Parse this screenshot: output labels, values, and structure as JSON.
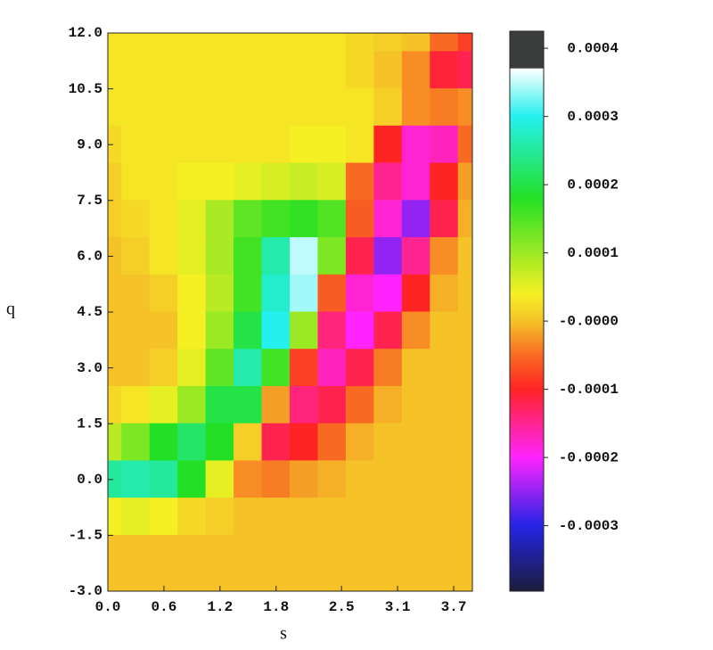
{
  "chart_data": {
    "type": "heatmap",
    "x_label": "s",
    "y_label": "q",
    "xlim": [
      0,
      3.9
    ],
    "ylim": [
      -3,
      12
    ],
    "xticks": [
      {
        "value": 0,
        "label": "0.0"
      },
      0.6,
      1.2,
      1.8,
      2.5,
      3.1,
      3.7
    ],
    "yticks": [
      {
        "value": -3,
        "label": "-3.0"
      },
      -1.5,
      {
        "value": 0,
        "label": "0.0"
      },
      1.5,
      {
        "value": 3,
        "label": "3.0"
      },
      4.5,
      {
        "value": 6,
        "label": "6.0"
      },
      7.5,
      {
        "value": 9,
        "label": "9.0"
      },
      10.5,
      {
        "value": 12,
        "label": "12.0"
      }
    ],
    "x": [
      0,
      0.3,
      0.6,
      0.9,
      1.2,
      1.5,
      1.8,
      2.1,
      2.4,
      2.7,
      3.0,
      3.3,
      3.6,
      3.9
    ],
    "y": [
      12,
      11,
      10,
      9,
      8,
      7,
      6,
      5,
      4,
      3,
      2,
      1,
      0,
      -1,
      -2,
      -3
    ],
    "z": [
      [
        3e-05,
        3e-05,
        3e-05,
        3e-05,
        3e-05,
        3e-05,
        3e-05,
        3e-05,
        3e-05,
        2e-05,
        1e-05,
        0,
        -5e-05,
        -8e-05
      ],
      [
        3e-05,
        3e-05,
        3e-05,
        3e-05,
        3e-05,
        3e-05,
        3e-05,
        3e-05,
        3e-05,
        2e-05,
        0,
        -3e-05,
        -0.00011,
        -0.00012
      ],
      [
        3e-05,
        3e-05,
        3e-05,
        3e-05,
        3e-05,
        3e-05,
        3e-05,
        3e-05,
        3e-05,
        3e-05,
        1e-05,
        -3e-05,
        -4e-05,
        -3e-05
      ],
      [
        2e-05,
        3e-05,
        3e-05,
        3e-05,
        3e-05,
        3e-05,
        3e-05,
        4e-05,
        4e-05,
        3e-05,
        -0.0001,
        -0.00018,
        -0.00017,
        -5e-05
      ],
      [
        1e-05,
        3e-05,
        3e-05,
        4e-05,
        4e-05,
        5e-05,
        6e-05,
        7e-05,
        6e-05,
        -5e-05,
        -0.00015,
        -0.00018,
        -0.0001,
        -2e-05
      ],
      [
        1e-05,
        2e-05,
        3e-05,
        5e-05,
        9e-05,
        0.00014,
        0.00016,
        0.00017,
        0.00015,
        -6e-05,
        -0.00018,
        -0.00025,
        -0.00012,
        -1e-05
      ],
      [
        0,
        1e-05,
        3e-05,
        5e-05,
        9e-05,
        0.00016,
        0.00026,
        0.00035,
        0.00012,
        -0.00012,
        -0.00025,
        -0.00015,
        -3e-05,
        0
      ],
      [
        0,
        0,
        1e-05,
        4e-05,
        8e-05,
        0.00016,
        0.00028,
        0.00034,
        -6e-05,
        -0.00018,
        -0.0002,
        -0.0001,
        -1e-05,
        0
      ],
      [
        0,
        0,
        0,
        4e-05,
        0.0001,
        0.0002,
        0.0003,
        0.0001,
        -0.00014,
        -0.0002,
        -0.00012,
        -3e-05,
        0,
        0
      ],
      [
        0,
        0,
        1e-05,
        5e-05,
        0.00014,
        0.00026,
        0.00016,
        -8e-05,
        -0.00017,
        -0.00012,
        -4e-05,
        0,
        0,
        0
      ],
      [
        2e-05,
        3e-05,
        5e-05,
        0.0001,
        0.0002,
        0.0002,
        -2e-05,
        -0.00014,
        -0.00012,
        -5e-05,
        -1e-05,
        0,
        0,
        0
      ],
      [
        8e-05,
        0.00012,
        0.00018,
        0.00022,
        0.00018,
        1e-05,
        -0.00012,
        -0.0001,
        -5e-05,
        -1e-05,
        0,
        0,
        0,
        0
      ],
      [
        0.00025,
        0.00026,
        0.00025,
        0.00018,
        5e-05,
        -3e-05,
        -4e-05,
        -2e-05,
        -1e-05,
        0,
        0,
        0,
        0,
        0
      ],
      [
        4e-05,
        5e-05,
        4e-05,
        2e-05,
        1e-05,
        0,
        0,
        0,
        0,
        0,
        0,
        0,
        0,
        0
      ],
      [
        0,
        0,
        0,
        0,
        0,
        0,
        0,
        0,
        0,
        0,
        0,
        0,
        0,
        0
      ],
      [
        0,
        0,
        0,
        0,
        0,
        0,
        0,
        0,
        0,
        0,
        0,
        0,
        0,
        0
      ]
    ],
    "zlim": [
      -0.000396,
      0.000425
    ],
    "zticks": [
      {
        "value": 0.0004,
        "label": "0.0004"
      },
      {
        "value": 0.0003,
        "label": "0.0003"
      },
      {
        "value": 0.0002,
        "label": "0.0002"
      },
      {
        "value": 0.0001,
        "label": "0.0001"
      },
      {
        "value": 0,
        "label": "-0.0000"
      },
      {
        "value": -0.0001,
        "label": "-0.0001"
      },
      {
        "value": -0.0002,
        "label": "-0.0002"
      },
      {
        "value": -0.0003,
        "label": "-0.0003"
      }
    ],
    "colormap": [
      {
        "value": -0.000396,
        "color": "#1c1c3c"
      },
      {
        "value": -0.0003,
        "color": "#2424e6"
      },
      {
        "value": -0.0002,
        "color": "#ff24ff"
      },
      {
        "value": -0.0001,
        "color": "#ff2424"
      },
      {
        "value": -5e-05,
        "color": "#f86a22"
      },
      {
        "value": 0,
        "color": "#f5c228"
      },
      {
        "value": 4e-05,
        "color": "#f5f024"
      },
      {
        "value": 0.00018,
        "color": "#24e024"
      },
      {
        "value": 0.0003,
        "color": "#24f0f0"
      },
      {
        "value": 0.00037,
        "color": "#ffffff"
      },
      {
        "value": 0.000371,
        "color": "#3a3d3b"
      },
      {
        "value": 0.000425,
        "color": "#3a3d3b"
      }
    ]
  }
}
